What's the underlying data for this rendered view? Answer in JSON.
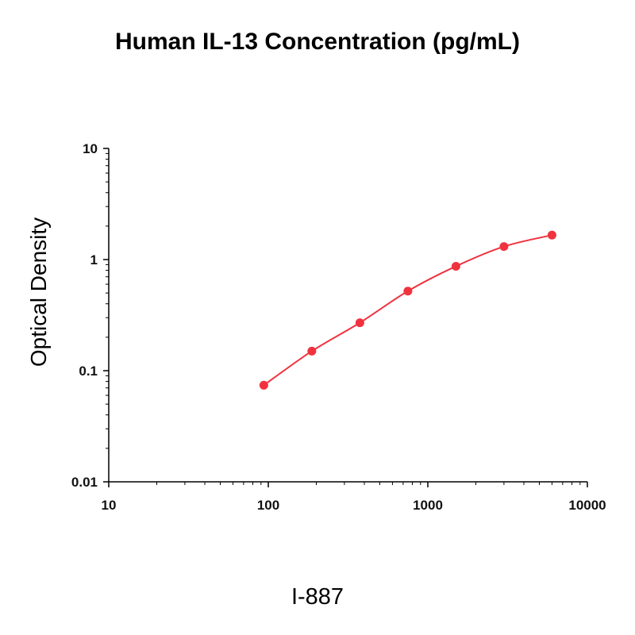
{
  "chart_data": {
    "type": "scatter",
    "title": "Human IL-13 Concentration (pg/mL)",
    "xlabel": "",
    "ylabel": "Optical Density",
    "x_scale": "log",
    "y_scale": "log",
    "xlim": [
      10,
      10000
    ],
    "ylim": [
      0.01,
      10
    ],
    "x_ticks": [
      "10",
      "100",
      "1000",
      "10000"
    ],
    "y_ticks": [
      "10",
      "1",
      "0.1",
      "0.01"
    ],
    "grid": false,
    "legend": "none",
    "series": [
      {
        "x": [
          93.75,
          187.5,
          375,
          750,
          1500,
          3000,
          6000
        ],
        "y": [
          0.074,
          0.15,
          0.27,
          0.52,
          0.87,
          1.31,
          1.66
        ],
        "fit_curve": true
      }
    ],
    "footer": "I-887"
  },
  "colors": {
    "series": "#f0323f",
    "axis": "#000000"
  }
}
